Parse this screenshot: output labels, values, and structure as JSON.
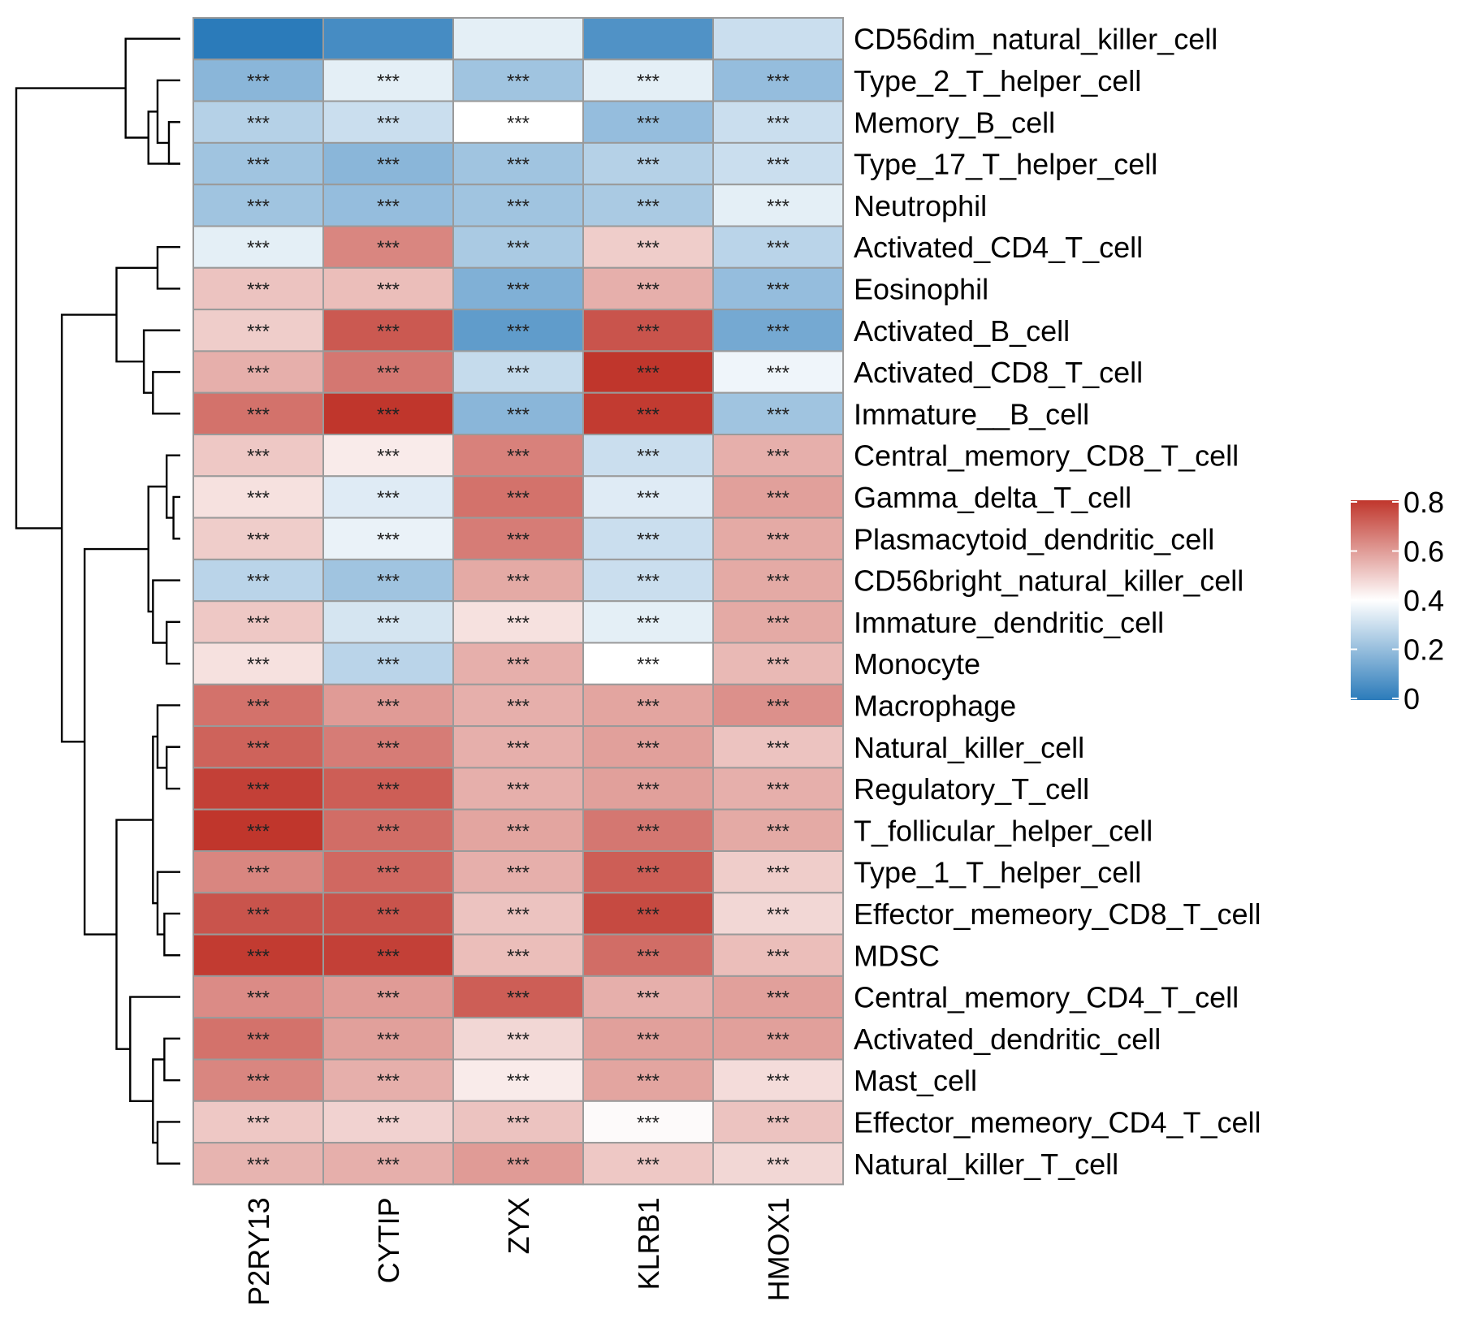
{
  "chart_data": {
    "type": "heatmap",
    "title": "",
    "xlabel": "",
    "ylabel": "",
    "columns": [
      "P2RY13",
      "CYTIP",
      "ZYX",
      "KLRB1",
      "HMOX1"
    ],
    "rows": [
      "CD56dim_natural_killer_cell",
      "Type_2_T_helper_cell",
      "Memory_B_cell",
      "Type_17_T_helper_cell",
      "Neutrophil",
      "Activated_CD4_T_cell",
      "Eosinophil",
      "Activated_B_cell",
      "Activated_CD8_T_cell",
      "Immature__B_cell",
      "Central_memory_CD8_T_cell",
      "Gamma_delta_T_cell",
      "Plasmacytoid_dendritic_cell",
      "CD56bright_natural_killer_cell",
      "Immature_dendritic_cell",
      "Monocyte",
      "Macrophage",
      "Natural_killer_cell",
      "Regulatory_T_cell",
      "T_follicular_helper_cell",
      "Type_1_T_helper_cell",
      "Effector_memeory_CD8_T_cell",
      "MDSC",
      "Central_memory_CD4_T_cell",
      "Activated_dendritic_cell",
      "Mast_cell",
      "Effector_memeory_CD4_T_cell",
      "Natural_killer_T_cell"
    ],
    "values": [
      [
        0.0,
        0.05,
        0.35,
        0.07,
        0.3
      ],
      [
        0.18,
        0.35,
        0.22,
        0.35,
        0.2
      ],
      [
        0.26,
        0.3,
        0.4,
        0.2,
        0.3
      ],
      [
        0.22,
        0.18,
        0.22,
        0.26,
        0.3
      ],
      [
        0.22,
        0.2,
        0.22,
        0.24,
        0.35
      ],
      [
        0.35,
        0.64,
        0.24,
        0.5,
        0.27
      ],
      [
        0.52,
        0.53,
        0.16,
        0.56,
        0.2
      ],
      [
        0.5,
        0.73,
        0.1,
        0.74,
        0.14
      ],
      [
        0.56,
        0.67,
        0.29,
        0.8,
        0.37
      ],
      [
        0.68,
        0.84,
        0.18,
        0.79,
        0.22
      ],
      [
        0.51,
        0.44,
        0.65,
        0.3,
        0.56
      ],
      [
        0.46,
        0.34,
        0.68,
        0.34,
        0.59
      ],
      [
        0.5,
        0.36,
        0.66,
        0.3,
        0.57
      ],
      [
        0.27,
        0.22,
        0.57,
        0.3,
        0.57
      ],
      [
        0.51,
        0.32,
        0.46,
        0.35,
        0.57
      ],
      [
        0.46,
        0.27,
        0.56,
        0.4,
        0.54
      ],
      [
        0.68,
        0.6,
        0.56,
        0.58,
        0.62
      ],
      [
        0.71,
        0.66,
        0.56,
        0.59,
        0.52
      ],
      [
        0.78,
        0.72,
        0.56,
        0.59,
        0.56
      ],
      [
        0.8,
        0.69,
        0.58,
        0.67,
        0.57
      ],
      [
        0.64,
        0.7,
        0.56,
        0.72,
        0.5
      ],
      [
        0.74,
        0.74,
        0.52,
        0.76,
        0.48
      ],
      [
        0.79,
        0.78,
        0.53,
        0.69,
        0.53
      ],
      [
        0.63,
        0.6,
        0.72,
        0.56,
        0.59
      ],
      [
        0.68,
        0.59,
        0.48,
        0.59,
        0.59
      ],
      [
        0.64,
        0.56,
        0.44,
        0.58,
        0.47
      ],
      [
        0.51,
        0.49,
        0.52,
        0.41,
        0.52
      ],
      [
        0.55,
        0.56,
        0.6,
        0.51,
        0.48
      ]
    ],
    "annotations": [
      [
        "",
        "",
        "",
        "",
        ""
      ],
      [
        "***",
        "***",
        "***",
        "***",
        "***"
      ],
      [
        "***",
        "***",
        "***",
        "***",
        "***"
      ],
      [
        "***",
        "***",
        "***",
        "***",
        "***"
      ],
      [
        "***",
        "***",
        "***",
        "***",
        "***"
      ],
      [
        "***",
        "***",
        "***",
        "***",
        "***"
      ],
      [
        "***",
        "***",
        "***",
        "***",
        "***"
      ],
      [
        "***",
        "***",
        "***",
        "***",
        "***"
      ],
      [
        "***",
        "***",
        "***",
        "***",
        "***"
      ],
      [
        "***",
        "***",
        "***",
        "***",
        "***"
      ],
      [
        "***",
        "***",
        "***",
        "***",
        "***"
      ],
      [
        "***",
        "***",
        "***",
        "***",
        "***"
      ],
      [
        "***",
        "***",
        "***",
        "***",
        "***"
      ],
      [
        "***",
        "***",
        "***",
        "***",
        "***"
      ],
      [
        "***",
        "***",
        "***",
        "***",
        "***"
      ],
      [
        "***",
        "***",
        "***",
        "***",
        "***"
      ],
      [
        "***",
        "***",
        "***",
        "***",
        "***"
      ],
      [
        "***",
        "***",
        "***",
        "***",
        "***"
      ],
      [
        "***",
        "***",
        "***",
        "***",
        "***"
      ],
      [
        "***",
        "***",
        "***",
        "***",
        "***"
      ],
      [
        "***",
        "***",
        "***",
        "***",
        "***"
      ],
      [
        "***",
        "***",
        "***",
        "***",
        "***"
      ],
      [
        "***",
        "***",
        "***",
        "***",
        "***"
      ],
      [
        "***",
        "***",
        "***",
        "***",
        "***"
      ],
      [
        "***",
        "***",
        "***",
        "***",
        "***"
      ],
      [
        "***",
        "***",
        "***",
        "***",
        "***"
      ],
      [
        "***",
        "***",
        "***",
        "***",
        "***"
      ],
      [
        "***",
        "***",
        "***",
        "***",
        "***"
      ]
    ],
    "color_scale": {
      "min": 0,
      "max": 0.8,
      "stops": [
        "#2b7bba",
        "#ffffff",
        "#c0362c"
      ],
      "ticks": [
        0,
        0.2,
        0.4,
        0.6,
        0.8
      ],
      "tick_labels": [
        "0",
        "0.2",
        "0.4",
        "0.6",
        "0.8"
      ]
    },
    "legend": "right",
    "cell_border_color": "#9a9a9a",
    "dendrogram": {
      "orientation": "left",
      "merges": [
        [
          2,
          3,
          0.05
        ],
        [
          1,
          2,
          0.1
        ],
        [
          1,
          3,
          0.14
        ],
        [
          0,
          1,
          0.24
        ],
        [
          5,
          6,
          0.1
        ],
        [
          8,
          9,
          0.12
        ],
        [
          7,
          8,
          0.16
        ],
        [
          5,
          7,
          0.28
        ],
        [
          11,
          12,
          0.03
        ],
        [
          10,
          11,
          0.06
        ],
        [
          14,
          15,
          0.06
        ],
        [
          13,
          14,
          0.12
        ],
        [
          10,
          13,
          0.14
        ],
        [
          17,
          18,
          0.06
        ],
        [
          16,
          17,
          0.1
        ],
        [
          21,
          22,
          0.07
        ],
        [
          20,
          21,
          0.1
        ],
        [
          16,
          20,
          0.12
        ],
        [
          24,
          25,
          0.07
        ],
        [
          26,
          27,
          0.1
        ],
        [
          24,
          26,
          0.12
        ],
        [
          23,
          24,
          0.22
        ],
        [
          16,
          23,
          0.28
        ],
        [
          10,
          16,
          0.42
        ],
        [
          5,
          10,
          0.52
        ],
        [
          0,
          5,
          0.72
        ]
      ],
      "max_height": 0.72
    }
  }
}
